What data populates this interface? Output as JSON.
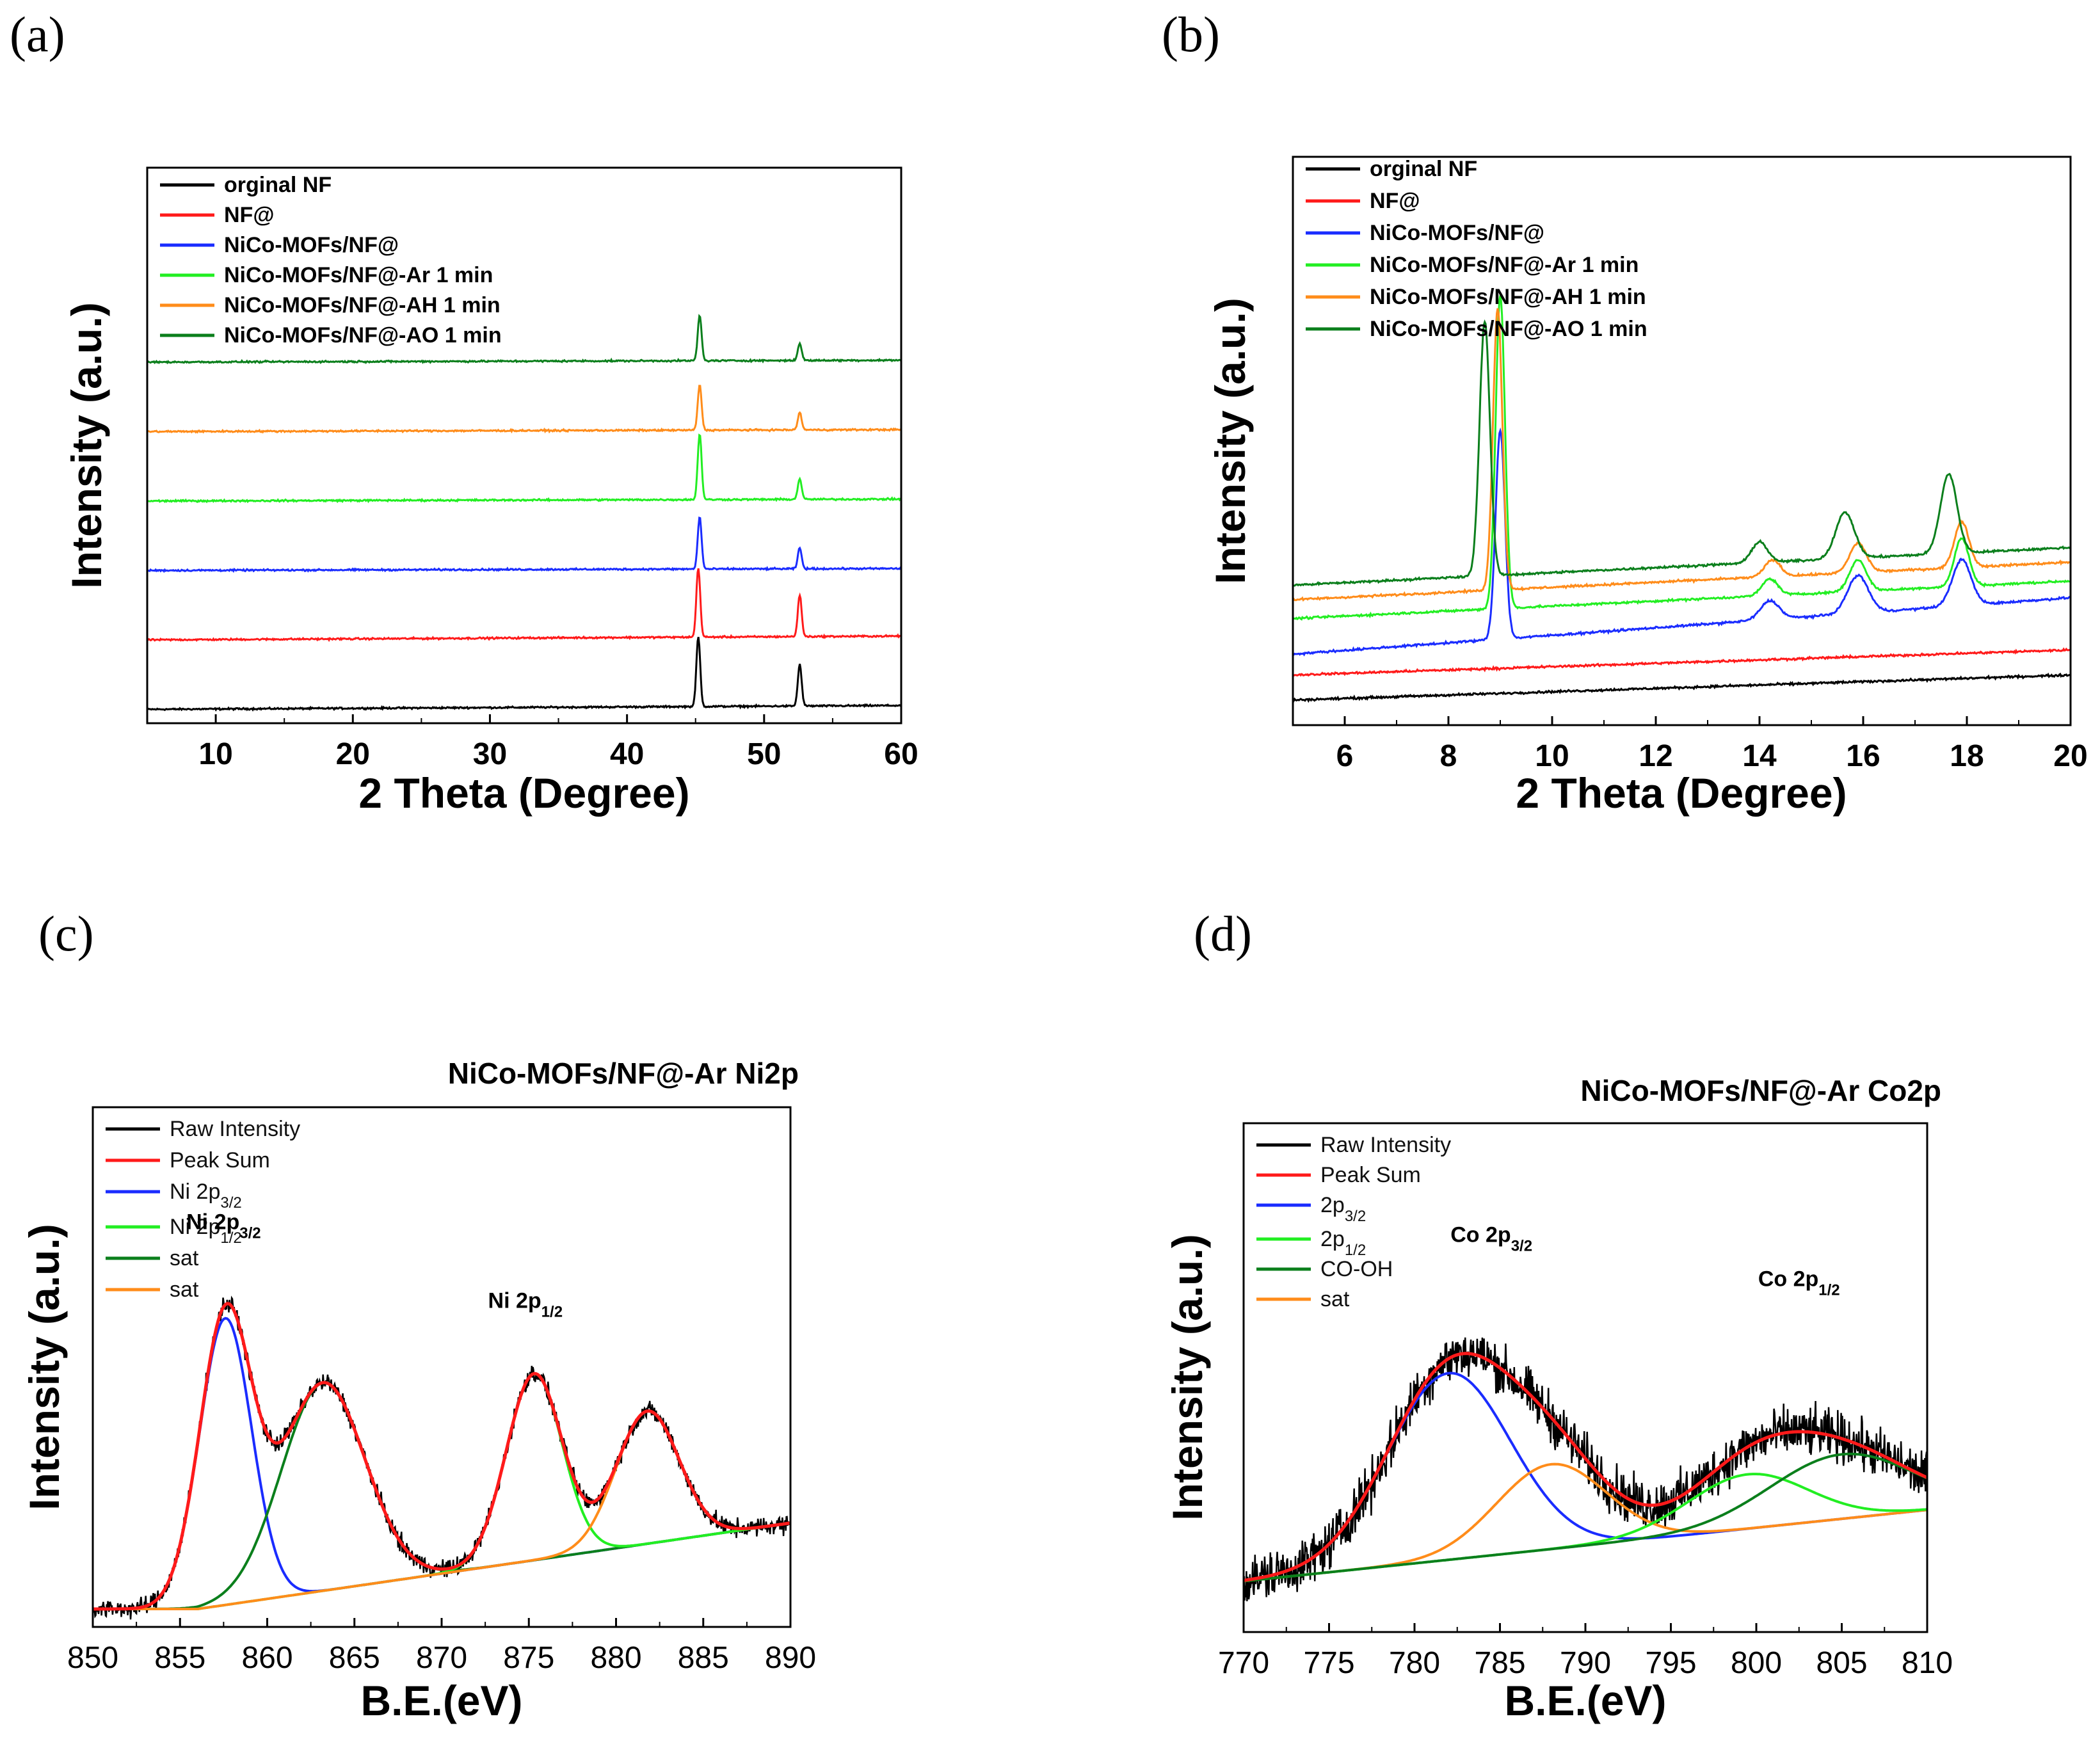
{
  "panel_labels": [
    "(a)",
    "(b)",
    "(c)",
    "(d)"
  ],
  "colors": {
    "black": "#000000",
    "red": "#ff1a1a",
    "blue": "#1a2cff",
    "light_green": "#22ee22",
    "orange": "#ff8c1a",
    "dark_green": "#0b7f1c"
  },
  "chart_data": [
    {
      "id": "a",
      "type": "line",
      "title": "",
      "xlabel": "2 Theta (Degree)",
      "ylabel": "Intensity (a.u.)",
      "xlim": [
        5,
        60
      ],
      "xticks": [
        10,
        20,
        30,
        40,
        50,
        60
      ],
      "legend_position": "top-left",
      "series": [
        {
          "name": "orginal NF",
          "color": "black",
          "baseline": 0,
          "slope": 0.01,
          "peaks": [
            {
              "x": 45.2,
              "h": 10,
              "w": 0.14
            },
            {
              "x": 52.6,
              "h": 6,
              "w": 0.14
            }
          ]
        },
        {
          "name": "NF@",
          "color": "red",
          "baseline": 10,
          "slope": 0.01,
          "peaks": [
            {
              "x": 45.2,
              "h": 10,
              "w": 0.14
            },
            {
              "x": 52.6,
              "h": 6,
              "w": 0.14
            }
          ]
        },
        {
          "name": "NiCo-MOFs/NF@",
          "color": "blue",
          "baseline": 20,
          "slope": 0.005,
          "peaks": [
            {
              "x": 45.3,
              "h": 7.5,
              "w": 0.14
            },
            {
              "x": 52.6,
              "h": 3,
              "w": 0.14
            }
          ]
        },
        {
          "name": "NiCo-MOFs/NF@-Ar  1 min",
          "color": "light_green",
          "baseline": 30,
          "slope": 0.005,
          "peaks": [
            {
              "x": 45.3,
              "h": 9.5,
              "w": 0.14
            },
            {
              "x": 52.6,
              "h": 3,
              "w": 0.14
            }
          ]
        },
        {
          "name": "NiCo-MOFs/NF@-AH 1 min",
          "color": "orange",
          "baseline": 40,
          "slope": 0.005,
          "peaks": [
            {
              "x": 45.3,
              "h": 6.5,
              "w": 0.14
            },
            {
              "x": 52.6,
              "h": 2.5,
              "w": 0.14
            }
          ]
        },
        {
          "name": "NiCo-MOFs/NF@-AO 1 min",
          "color": "dark_green",
          "baseline": 50,
          "slope": 0.005,
          "peaks": [
            {
              "x": 45.3,
              "h": 6.5,
              "w": 0.14
            },
            {
              "x": 52.6,
              "h": 2.5,
              "w": 0.14
            }
          ]
        }
      ]
    },
    {
      "id": "b",
      "type": "line",
      "title": "",
      "xlabel": "2 Theta (Degree)",
      "ylabel": "Intensity (a.u.)",
      "xlim": [
        5,
        20
      ],
      "xticks": [
        6,
        8,
        10,
        12,
        14,
        16,
        18,
        20
      ],
      "legend_position": "top-left",
      "series": [
        {
          "name": "orginal NF",
          "color": "black",
          "baseline": 0,
          "slope": 0.08,
          "peaks": []
        },
        {
          "name": "NF@",
          "color": "red",
          "baseline": 1.2,
          "slope": 0.08,
          "peaks": []
        },
        {
          "name": "NiCo-MOFs/NF@",
          "color": "blue",
          "baseline": 2.2,
          "slope": 0.18,
          "peaks": [
            {
              "x": 9.0,
              "h": 10,
              "w": 0.09
            },
            {
              "x": 14.2,
              "h": 0.9,
              "w": 0.18
            },
            {
              "x": 15.9,
              "h": 1.8,
              "w": 0.2
            },
            {
              "x": 17.9,
              "h": 2.2,
              "w": 0.18
            }
          ]
        },
        {
          "name": "NiCo-MOFs/NF@-Ar  1 min",
          "color": "light_green",
          "baseline": 3.9,
          "slope": 0.12,
          "peaks": [
            {
              "x": 9.0,
              "h": 15,
              "w": 0.09
            },
            {
              "x": 14.2,
              "h": 0.8,
              "w": 0.15
            },
            {
              "x": 15.9,
              "h": 1.5,
              "w": 0.16
            },
            {
              "x": 17.9,
              "h": 2.3,
              "w": 0.14
            }
          ]
        },
        {
          "name": "NiCo-MOFs/NF@-AH 1 min",
          "color": "orange",
          "baseline": 4.8,
          "slope": 0.12,
          "peaks": [
            {
              "x": 8.95,
              "h": 13.5,
              "w": 0.09
            },
            {
              "x": 14.25,
              "h": 0.8,
              "w": 0.15
            },
            {
              "x": 15.9,
              "h": 1.4,
              "w": 0.16
            },
            {
              "x": 17.9,
              "h": 2.2,
              "w": 0.14
            }
          ]
        },
        {
          "name": "NiCo-MOFs/NF@-AO 1 min",
          "color": "dark_green",
          "baseline": 5.5,
          "slope": 0.12,
          "peaks": [
            {
              "x": 8.7,
              "h": 12.2,
              "w": 0.1
            },
            {
              "x": 14.0,
              "h": 1.0,
              "w": 0.15
            },
            {
              "x": 15.65,
              "h": 2.2,
              "w": 0.18
            },
            {
              "x": 17.65,
              "h": 3.8,
              "w": 0.16
            }
          ]
        }
      ]
    },
    {
      "id": "c",
      "type": "line",
      "title": "NiCo-MOFs/NF@-Ar  Ni2p",
      "xlabel": "B.E.(eV)",
      "ylabel": "Intensity (a.u.)",
      "xlim": [
        850,
        890
      ],
      "xticks": [
        850,
        855,
        860,
        865,
        870,
        875,
        880,
        885,
        890
      ],
      "legend_position": "top-left",
      "legend": [
        "Raw Intensity",
        "Peak Sum",
        "Ni 2p3/2",
        "Ni 2p1/2",
        "sat",
        "sat"
      ],
      "annotations": [
        {
          "text": "Ni 2p",
          "sub": "3/2",
          "x": 857.5,
          "y": 10.6
        },
        {
          "text": "Ni 2p",
          "sub": "1/2",
          "x": 874.8,
          "y": 8.4
        }
      ],
      "background": {
        "x0": 856,
        "y_start": 0,
        "y_end": 2.4
      },
      "components": [
        {
          "name": "Ni 2p3/2",
          "color": "blue",
          "x": 857.6,
          "h": 8.0,
          "w": 1.5
        },
        {
          "name": "sat",
          "color": "dark_green",
          "x": 863.2,
          "h": 5.8,
          "w": 2.4
        },
        {
          "name": "Ni 2p1/2",
          "color": "light_green",
          "x": 875.3,
          "h": 5.2,
          "w": 1.6
        },
        {
          "name": "sat",
          "color": "orange",
          "x": 881.8,
          "h": 3.7,
          "w": 1.8
        }
      ],
      "raw": {
        "name": "Raw Intensity",
        "color": "black",
        "noise": 0.25
      },
      "sum": {
        "name": "Peak Sum",
        "color": "red"
      },
      "ylim": [
        -0.5,
        14
      ]
    },
    {
      "id": "d",
      "type": "line",
      "title": "NiCo-MOFs/NF@-Ar  Co2p",
      "xlabel": "B.E.(eV)",
      "ylabel": "Intensity (a.u.)",
      "xlim": [
        770,
        810
      ],
      "xticks": [
        770,
        775,
        780,
        785,
        790,
        795,
        800,
        805,
        810
      ],
      "legend_position": "top-left",
      "legend": [
        "Raw Intensity",
        "Peak Sum",
        "2p3/2",
        "2p1/2",
        "CO-OH",
        "sat"
      ],
      "annotations": [
        {
          "text": "Co 2p",
          "sub": "3/2",
          "x": 784.5,
          "y": 10.5
        },
        {
          "text": "Co 2p",
          "sub": "1/2",
          "x": 802.5,
          "y": 9.2
        }
      ],
      "background": {
        "x0": 770,
        "y_start": 0.5,
        "y_end": 2.6
      },
      "components": [
        {
          "name": "2p3/2",
          "color": "blue",
          "x": 782,
          "h": 5.5,
          "w": 3.6
        },
        {
          "name": "sat",
          "color": "orange",
          "x": 788,
          "h": 2.5,
          "w": 3.2
        },
        {
          "name": "2p1/2",
          "color": "light_green",
          "x": 799.5,
          "h": 1.6,
          "w": 3.5
        },
        {
          "name": "CO-OH",
          "color": "dark_green",
          "x": 805,
          "h": 1.9,
          "w": 4.2
        }
      ],
      "raw": {
        "name": "Raw Intensity",
        "color": "black",
        "noise": 0.45
      },
      "sum": {
        "name": "Peak Sum",
        "color": "red"
      },
      "ylim": [
        -1,
        14
      ]
    }
  ]
}
